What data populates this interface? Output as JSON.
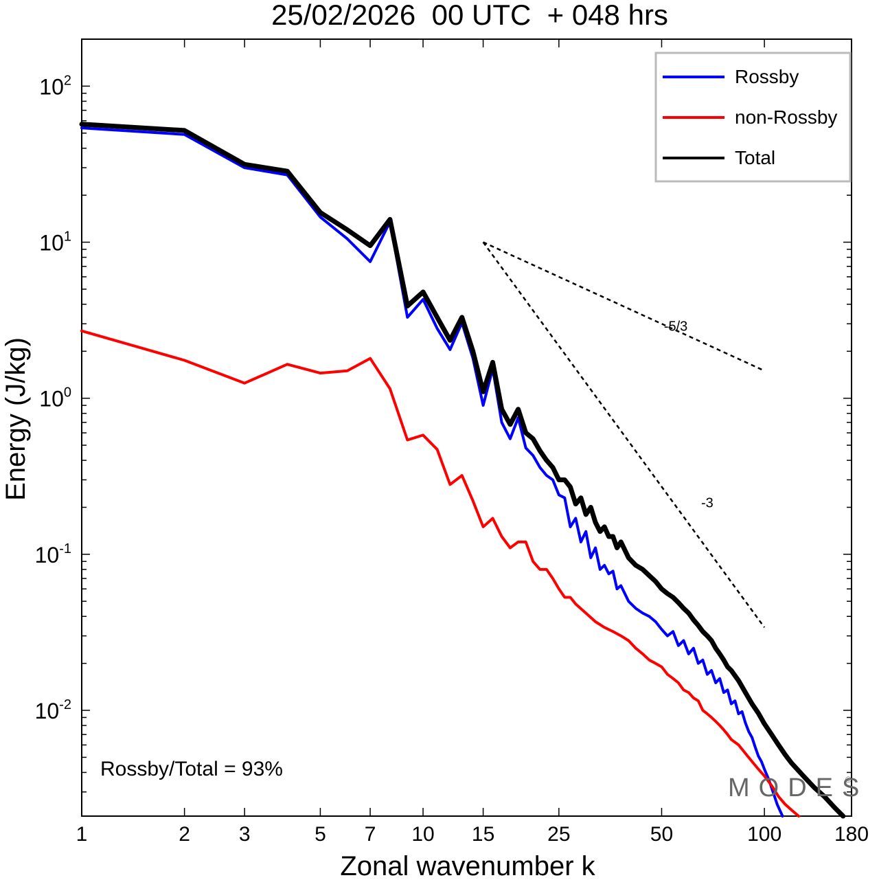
{
  "chart_data": {
    "type": "line",
    "title": "25/02/2026  00 UTC  + 048 hrs",
    "xlabel": "Zonal wavenumber k",
    "ylabel": "Energy (J/kg)",
    "xscale": "log",
    "yscale": "log",
    "xlim": [
      1,
      180
    ],
    "ylim": [
      0.0021,
      200
    ],
    "x_ticks": [
      1,
      2,
      3,
      5,
      7,
      10,
      15,
      25,
      50,
      100,
      180
    ],
    "x_tick_labels": [
      "1",
      "2",
      "3",
      "5",
      "7",
      "10",
      "15",
      "25",
      "50",
      "100",
      "180"
    ],
    "y_ticks": [
      {
        "value": 100,
        "base": "10",
        "exp": "2"
      },
      {
        "value": 10,
        "base": "10",
        "exp": "1"
      },
      {
        "value": 1,
        "base": "10",
        "exp": "0"
      },
      {
        "value": 0.1,
        "base": "10",
        "exp": "-1"
      },
      {
        "value": 0.01,
        "base": "10",
        "exp": "-2"
      }
    ],
    "legend_position": "top-right",
    "series": [
      {
        "name": "Rossby",
        "color": "#0000ff",
        "points": [
          [
            1,
            54
          ],
          [
            2,
            49
          ],
          [
            3,
            30
          ],
          [
            4,
            27
          ],
          [
            5,
            14.5
          ],
          [
            6,
            10.5
          ],
          [
            7,
            7.5
          ],
          [
            8,
            13.5
          ],
          [
            9,
            3.3
          ],
          [
            10,
            4.3
          ],
          [
            11,
            2.8
          ],
          [
            12,
            2.05
          ],
          [
            13,
            3.05
          ],
          [
            14,
            1.8
          ],
          [
            15,
            0.9
          ],
          [
            16,
            1.55
          ],
          [
            17,
            0.7
          ],
          [
            18,
            0.55
          ],
          [
            19,
            0.75
          ],
          [
            20,
            0.48
          ],
          [
            21,
            0.43
          ],
          [
            22,
            0.36
          ],
          [
            23,
            0.32
          ],
          [
            24,
            0.3
          ],
          [
            25,
            0.24
          ],
          [
            26,
            0.23
          ],
          [
            27,
            0.15
          ],
          [
            28,
            0.17
          ],
          [
            29,
            0.12
          ],
          [
            30,
            0.14
          ],
          [
            31,
            0.095
          ],
          [
            32,
            0.11
          ],
          [
            33,
            0.08
          ],
          [
            34,
            0.085
          ],
          [
            35,
            0.075
          ],
          [
            36,
            0.078
          ],
          [
            37,
            0.06
          ],
          [
            38,
            0.063
          ],
          [
            40,
            0.05
          ],
          [
            42,
            0.045
          ],
          [
            44,
            0.042
          ],
          [
            46,
            0.04
          ],
          [
            48,
            0.037
          ],
          [
            50,
            0.033
          ],
          [
            52,
            0.03
          ],
          [
            54,
            0.032
          ],
          [
            56,
            0.026
          ],
          [
            58,
            0.028
          ],
          [
            60,
            0.023
          ],
          [
            62,
            0.025
          ],
          [
            64,
            0.02
          ],
          [
            66,
            0.021
          ],
          [
            68,
            0.017
          ],
          [
            70,
            0.018
          ],
          [
            72,
            0.015
          ],
          [
            74,
            0.016
          ],
          [
            76,
            0.013
          ],
          [
            78,
            0.0135
          ],
          [
            80,
            0.011
          ],
          [
            82,
            0.0115
          ],
          [
            84,
            0.0095
          ],
          [
            86,
            0.0098
          ],
          [
            88,
            0.0083
          ],
          [
            90,
            0.0073
          ],
          [
            92,
            0.0067
          ],
          [
            94,
            0.0058
          ],
          [
            96,
            0.0051
          ],
          [
            98,
            0.0047
          ],
          [
            100,
            0.0042
          ],
          [
            103,
            0.0036
          ],
          [
            106,
            0.003
          ],
          [
            109,
            0.0025
          ],
          [
            113,
            0.0021
          ]
        ]
      },
      {
        "name": "non-Rossby",
        "color": "#ff0000",
        "points": [
          [
            1,
            2.7
          ],
          [
            2,
            1.75
          ],
          [
            3,
            1.25
          ],
          [
            4,
            1.65
          ],
          [
            5,
            1.45
          ],
          [
            6,
            1.5
          ],
          [
            7,
            1.8
          ],
          [
            8,
            1.15
          ],
          [
            9,
            0.54
          ],
          [
            10,
            0.58
          ],
          [
            11,
            0.47
          ],
          [
            12,
            0.28
          ],
          [
            13,
            0.32
          ],
          [
            14,
            0.22
          ],
          [
            15,
            0.15
          ],
          [
            16,
            0.17
          ],
          [
            17,
            0.13
          ],
          [
            18,
            0.11
          ],
          [
            19,
            0.12
          ],
          [
            20,
            0.12
          ],
          [
            21,
            0.09
          ],
          [
            22,
            0.08
          ],
          [
            23,
            0.08
          ],
          [
            24,
            0.07
          ],
          [
            25,
            0.06
          ],
          [
            26,
            0.053
          ],
          [
            27,
            0.053
          ],
          [
            28,
            0.048
          ],
          [
            30,
            0.042
          ],
          [
            32,
            0.037
          ],
          [
            34,
            0.034
          ],
          [
            36,
            0.032
          ],
          [
            38,
            0.03
          ],
          [
            40,
            0.028
          ],
          [
            42,
            0.025
          ],
          [
            44,
            0.023
          ],
          [
            46,
            0.021
          ],
          [
            48,
            0.02
          ],
          [
            50,
            0.019
          ],
          [
            52,
            0.017
          ],
          [
            54,
            0.016
          ],
          [
            56,
            0.015
          ],
          [
            58,
            0.0135
          ],
          [
            60,
            0.013
          ],
          [
            62,
            0.012
          ],
          [
            64,
            0.0115
          ],
          [
            66,
            0.01
          ],
          [
            68,
            0.0095
          ],
          [
            70,
            0.009
          ],
          [
            72,
            0.0085
          ],
          [
            74,
            0.008
          ],
          [
            76,
            0.0075
          ],
          [
            78,
            0.007
          ],
          [
            80,
            0.0065
          ],
          [
            84,
            0.006
          ],
          [
            88,
            0.0053
          ],
          [
            92,
            0.0047
          ],
          [
            96,
            0.0042
          ],
          [
            100,
            0.0038
          ],
          [
            105,
            0.0033
          ],
          [
            110,
            0.0028
          ],
          [
            115,
            0.0025
          ],
          [
            120,
            0.0023
          ],
          [
            126,
            0.0021
          ]
        ]
      },
      {
        "name": "Total",
        "color": "#000000",
        "points": [
          [
            1,
            57
          ],
          [
            2,
            52
          ],
          [
            3,
            31.5
          ],
          [
            4,
            28.5
          ],
          [
            5,
            15.5
          ],
          [
            6,
            12
          ],
          [
            7,
            9.5
          ],
          [
            8,
            14
          ],
          [
            9,
            3.9
          ],
          [
            10,
            4.8
          ],
          [
            11,
            3.3
          ],
          [
            12,
            2.35
          ],
          [
            13,
            3.3
          ],
          [
            14,
            2.0
          ],
          [
            15,
            1.1
          ],
          [
            16,
            1.7
          ],
          [
            17,
            0.85
          ],
          [
            18,
            0.68
          ],
          [
            19,
            0.85
          ],
          [
            20,
            0.6
          ],
          [
            21,
            0.55
          ],
          [
            22,
            0.46
          ],
          [
            23,
            0.4
          ],
          [
            24,
            0.36
          ],
          [
            25,
            0.3
          ],
          [
            26,
            0.3
          ],
          [
            27,
            0.27
          ],
          [
            28,
            0.21
          ],
          [
            29,
            0.23
          ],
          [
            30,
            0.18
          ],
          [
            31,
            0.2
          ],
          [
            32,
            0.16
          ],
          [
            33,
            0.14
          ],
          [
            34,
            0.15
          ],
          [
            35,
            0.13
          ],
          [
            36,
            0.13
          ],
          [
            37,
            0.11
          ],
          [
            38,
            0.12
          ],
          [
            40,
            0.095
          ],
          [
            42,
            0.085
          ],
          [
            44,
            0.08
          ],
          [
            46,
            0.073
          ],
          [
            48,
            0.067
          ],
          [
            50,
            0.06
          ],
          [
            52,
            0.056
          ],
          [
            54,
            0.053
          ],
          [
            56,
            0.049
          ],
          [
            58,
            0.045
          ],
          [
            60,
            0.042
          ],
          [
            62,
            0.038
          ],
          [
            64,
            0.035
          ],
          [
            66,
            0.032
          ],
          [
            68,
            0.03
          ],
          [
            70,
            0.028
          ],
          [
            72,
            0.025
          ],
          [
            74,
            0.023
          ],
          [
            76,
            0.021
          ],
          [
            78,
            0.019
          ],
          [
            80,
            0.018
          ],
          [
            84,
            0.0155
          ],
          [
            88,
            0.013
          ],
          [
            92,
            0.011
          ],
          [
            96,
            0.0096
          ],
          [
            100,
            0.0082
          ],
          [
            105,
            0.007
          ],
          [
            110,
            0.006
          ],
          [
            115,
            0.0052
          ],
          [
            120,
            0.0046
          ],
          [
            130,
            0.0038
          ],
          [
            140,
            0.0032
          ],
          [
            150,
            0.0028
          ],
          [
            160,
            0.0024
          ],
          [
            170,
            0.0021
          ]
        ]
      }
    ],
    "reference_slopes": [
      {
        "label": "-5/3",
        "points": [
          [
            15,
            10
          ],
          [
            100,
            1.5
          ]
        ],
        "label_at": [
          55,
          2.7
        ]
      },
      {
        "label": "-3",
        "points": [
          [
            15,
            10
          ],
          [
            100,
            0.034
          ]
        ],
        "label_at": [
          68,
          0.2
        ]
      }
    ],
    "annotations": {
      "ratio": "Rossby/Total = 93%",
      "watermark": "MODES",
      "watermark_mark": "©"
    }
  }
}
